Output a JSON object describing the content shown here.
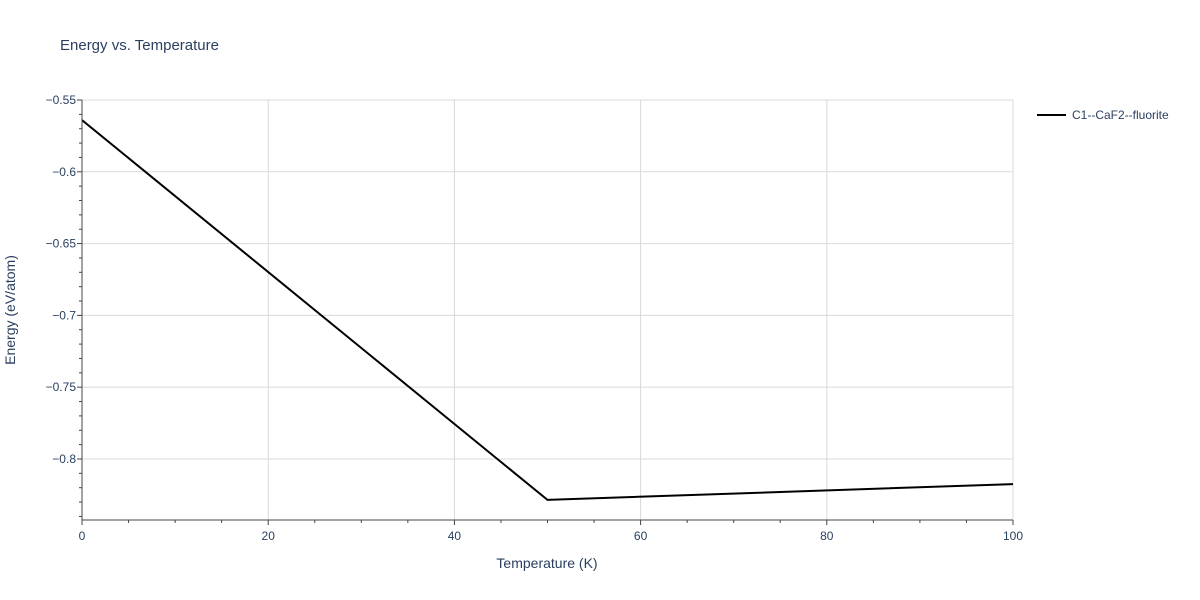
{
  "chart_data": {
    "type": "line",
    "title": "Energy vs. Temperature",
    "xlabel": "Temperature (K)",
    "ylabel": "Energy (eV/atom)",
    "xlim": [
      0,
      100
    ],
    "ylim": [
      -0.8425,
      -0.55
    ],
    "x_ticks": [
      0,
      20,
      40,
      60,
      80,
      100
    ],
    "x_tick_labels": [
      "0",
      "20",
      "40",
      "60",
      "80",
      "100"
    ],
    "y_ticks": [
      -0.55,
      -0.6,
      -0.65,
      -0.7,
      -0.75,
      -0.8
    ],
    "y_tick_labels": [
      "−0.55",
      "−0.6",
      "−0.65",
      "−0.7",
      "−0.75",
      "−0.8"
    ],
    "grid": true,
    "legend_position": "top-right",
    "series": [
      {
        "name": "C1--CaF2--fluorite",
        "color": "#000000",
        "x": [
          0,
          50,
          100
        ],
        "y": [
          -0.564,
          -0.8285,
          -0.8175
        ]
      }
    ]
  }
}
